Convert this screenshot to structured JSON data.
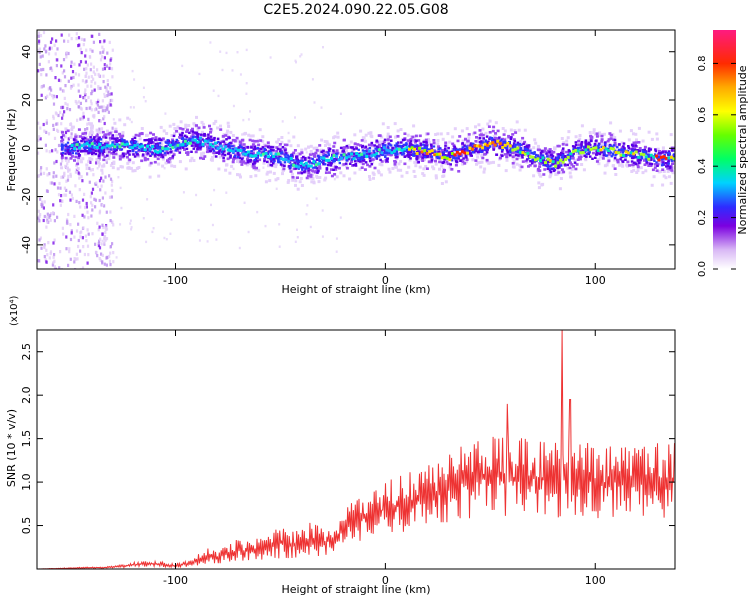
{
  "figure": {
    "title": "C2E5.2024.090.22.05.G08"
  },
  "colorbar": {
    "label": "Normalized spectral amplitude",
    "ticks": [
      "0.0",
      "0.2",
      "0.4",
      "0.6",
      "0.8"
    ],
    "tick_values": [
      0.0,
      0.2,
      0.4,
      0.6,
      0.8
    ],
    "range": [
      0,
      0.93
    ]
  },
  "chart_data": [
    {
      "type": "heatmap",
      "title": "",
      "xlabel": "Height of straight line (km)",
      "ylabel": "Frequency (Hz)",
      "xlim": [
        -166,
        138
      ],
      "ylim": [
        -50,
        49
      ],
      "xticks": [
        -100,
        0,
        100
      ],
      "xtick_labels": [
        "-100",
        "0",
        "100"
      ],
      "yticks": [
        -40,
        -20,
        0,
        20,
        40
      ],
      "ytick_labels": [
        "-40",
        "-20",
        "0",
        "20",
        "40"
      ],
      "ridge": {
        "x": [
          -150,
          -130,
          -110,
          -90,
          -70,
          -50,
          -40,
          -30,
          -10,
          0,
          10,
          20,
          30,
          40,
          50,
          60,
          70,
          80,
          90,
          100,
          110,
          120,
          130,
          138
        ],
        "frequency": [
          1,
          2,
          0,
          4,
          -1,
          -3,
          -7,
          -4,
          -2,
          0,
          0,
          -1,
          -3,
          0,
          3,
          1,
          -3,
          -6,
          -1,
          1,
          -1,
          -2,
          -4,
          -3
        ]
      },
      "noise_region_x": [
        -166,
        -130
      ]
    },
    {
      "type": "line",
      "title": "",
      "xlabel": "Height of straight line (km)",
      "ylabel": "SNR (10 * v/v)",
      "multiplier_label": "(x10⁴)",
      "xlim": [
        -166,
        138
      ],
      "ylim": [
        0,
        2.75
      ],
      "xticks": [
        -100,
        0,
        100
      ],
      "xtick_labels": [
        "-100",
        "0",
        "100"
      ],
      "yticks": [
        0.5,
        1.0,
        1.5,
        2.0,
        2.5
      ],
      "ytick_labels": [
        "0.5",
        "1.0",
        "1.5",
        "2.0",
        "2.5"
      ],
      "color": "#ee3333",
      "series": [
        {
          "x": [
            -166,
            -150,
            -130,
            -120,
            -110,
            -100,
            -95,
            -90,
            -85,
            -80,
            -75,
            -70,
            -65,
            -60,
            -55,
            -50,
            -45,
            -40,
            -35,
            -30,
            -25,
            -20,
            -15,
            -10,
            -5,
            0,
            5,
            10,
            15,
            20,
            25,
            30,
            35,
            40,
            45,
            50,
            55,
            60,
            65,
            70,
            75,
            80,
            85,
            90,
            95,
            100,
            105,
            110,
            115,
            120,
            125,
            130,
            138
          ],
          "y": [
            0.0,
            0.01,
            0.02,
            0.05,
            0.06,
            0.04,
            0.06,
            0.1,
            0.15,
            0.13,
            0.18,
            0.22,
            0.2,
            0.25,
            0.28,
            0.3,
            0.27,
            0.32,
            0.35,
            0.3,
            0.33,
            0.45,
            0.55,
            0.6,
            0.62,
            0.7,
            0.72,
            0.78,
            0.8,
            0.85,
            0.9,
            0.95,
            1.0,
            1.02,
            1.05,
            1.05,
            1.08,
            1.06,
            1.04,
            1.06,
            1.03,
            1.08,
            1.05,
            0.98,
            1.02,
            1.0,
            0.97,
            1.0,
            1.02,
            0.98,
            1.0,
            1.02,
            1.02
          ]
        }
      ],
      "spikes": [
        {
          "x": 58,
          "y": 1.9
        },
        {
          "x": 84,
          "y": 2.75
        },
        {
          "x": 88,
          "y": 1.95
        }
      ]
    }
  ]
}
